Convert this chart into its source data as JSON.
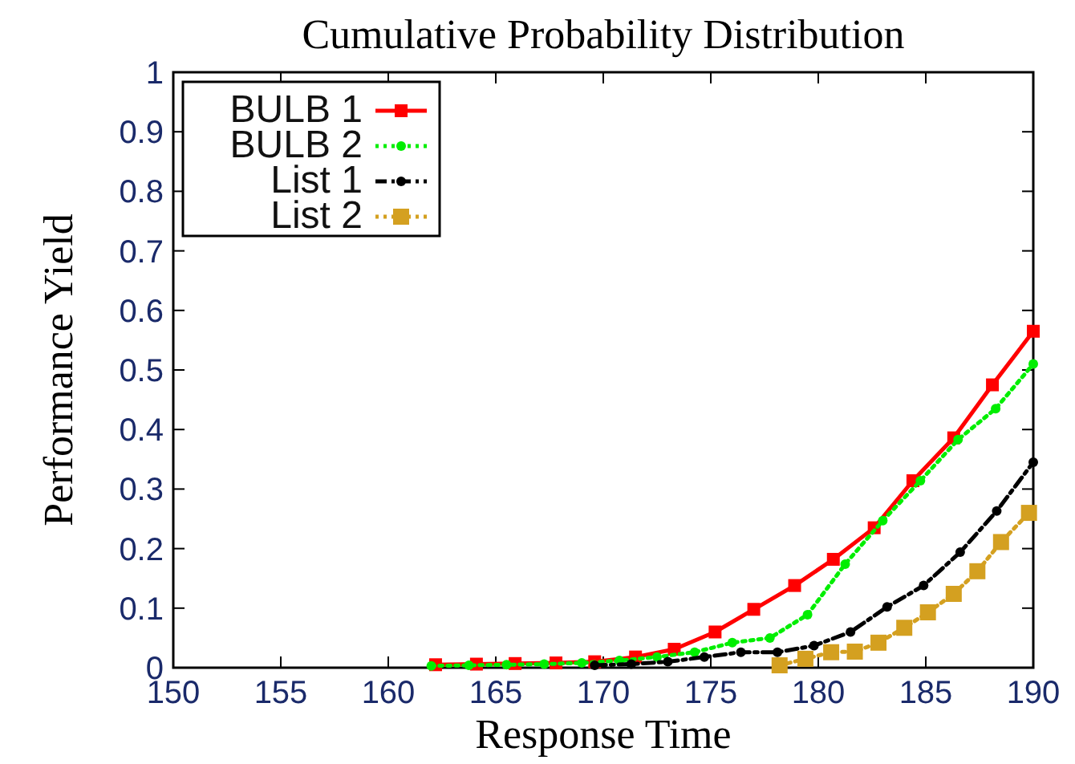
{
  "chart_data": {
    "type": "line",
    "title": "Cumulative Probability Distribution",
    "xlabel": "Response Time",
    "ylabel": "Performance Yield",
    "xlim": [
      150,
      190
    ],
    "xticks": [
      150,
      155,
      160,
      165,
      170,
      175,
      180,
      185,
      190
    ],
    "ylim": [
      0,
      1
    ],
    "yticks": [
      0,
      0.1,
      0.2,
      0.3,
      0.4,
      0.5,
      0.6,
      0.7,
      0.8,
      0.9,
      1
    ],
    "grid": false,
    "legend": "top left",
    "series": [
      {
        "name": "BULB 1",
        "color": "#ff0000",
        "marker": "square",
        "line_style": "solid",
        "x": [
          162.2,
          164.1,
          165.9,
          167.8,
          169.6,
          171.5,
          173.3,
          175.2,
          177,
          178.9,
          180.7,
          182.6,
          184.4,
          186.3,
          188.1,
          190
        ],
        "values": [
          0.005,
          0.006,
          0.007,
          0.008,
          0.01,
          0.018,
          0.031,
          0.06,
          0.098,
          0.138,
          0.182,
          0.235,
          0.314,
          0.386,
          0.475,
          0.565
        ]
      },
      {
        "name": "BULB 2",
        "color": "#00ee00",
        "marker": "circle",
        "line_style": "dotted",
        "x": [
          162,
          163.75,
          165.5,
          167.25,
          169,
          170.75,
          172.5,
          174.25,
          176,
          177.75,
          179.5,
          181.25,
          183,
          184.75,
          186.5,
          188.25,
          190
        ],
        "values": [
          0.003,
          0.004,
          0.005,
          0.006,
          0.008,
          0.012,
          0.018,
          0.026,
          0.042,
          0.05,
          0.089,
          0.174,
          0.247,
          0.314,
          0.383,
          0.435,
          0.51
        ]
      },
      {
        "name": "List 1",
        "color": "#000000",
        "marker": "circle",
        "line_style": "dashed",
        "x": [
          169.6,
          171.3,
          173,
          174.7,
          176.4,
          178.1,
          179.8,
          181.5,
          183.2,
          184.9,
          186.6,
          188.3,
          190
        ],
        "values": [
          0.004,
          0.006,
          0.01,
          0.018,
          0.026,
          0.026,
          0.037,
          0.06,
          0.102,
          0.138,
          0.194,
          0.263,
          0.345
        ]
      },
      {
        "name": "List 2",
        "color": "#d4a020",
        "marker": "square",
        "line_style": "dotted",
        "x": [
          178.2,
          179.4,
          180.6,
          181.7,
          182.8,
          184,
          185.1,
          186.3,
          187.4,
          188.5,
          189.8
        ],
        "values": [
          0.004,
          0.015,
          0.026,
          0.027,
          0.042,
          0.067,
          0.093,
          0.124,
          0.162,
          0.211,
          0.26
        ]
      }
    ]
  }
}
